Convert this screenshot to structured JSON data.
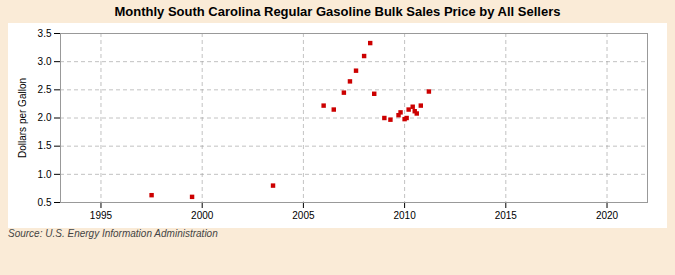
{
  "chart_data": {
    "type": "scatter",
    "title": "Monthly South Carolina Regular Gasoline Bulk Sales Price by All Sellers",
    "ylabel": "Dollars per Gallon",
    "annotations": [
      "Source: U.S. Energy Information Administration"
    ],
    "color": "#cc0000",
    "marker": "square",
    "grid": true,
    "xlim": [
      1993,
      2022
    ],
    "ylim": [
      0.5,
      3.5
    ],
    "xticks": [
      1995,
      2000,
      2005,
      2010,
      2015,
      2020
    ],
    "yticks": [
      0.5,
      {
        "value": 1.0,
        "label": "1.0"
      },
      1.5,
      {
        "value": 2.0,
        "label": "2.0"
      },
      2.5,
      {
        "value": 3.0,
        "label": "3.0"
      },
      3.5
    ],
    "x": [
      1997.5,
      1999.5,
      2003.5,
      2006.0,
      2006.5,
      2007.0,
      2007.3,
      2007.6,
      2008.0,
      2008.3,
      2008.5,
      2009.0,
      2009.3,
      2009.7,
      2009.8,
      2010.0,
      2010.1,
      2010.2,
      2010.4,
      2010.5,
      2010.6,
      2010.8,
      2011.2
    ],
    "values": [
      0.63,
      0.6,
      0.8,
      2.22,
      2.15,
      2.45,
      2.65,
      2.84,
      3.1,
      3.33,
      2.43,
      2.0,
      1.97,
      2.05,
      2.1,
      1.98,
      2.0,
      2.15,
      2.2,
      2.12,
      2.08,
      2.22,
      2.47
    ]
  }
}
